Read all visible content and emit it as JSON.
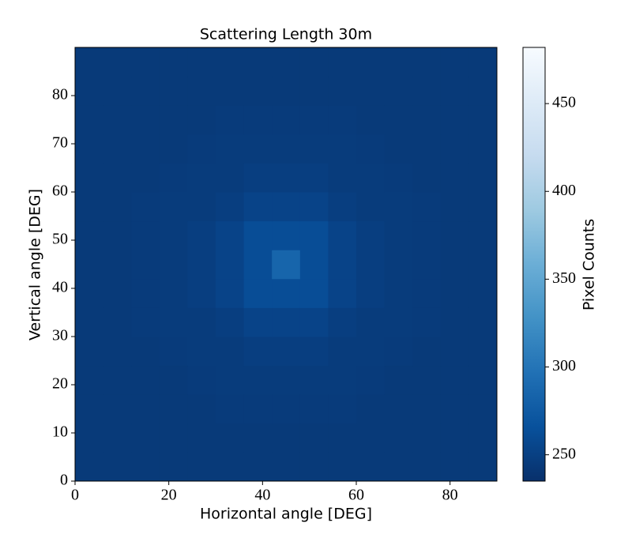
{
  "chart_data": {
    "type": "heatmap",
    "title": "Scattering Length 30m",
    "x_label": "Horizontal angle [DEG]",
    "y_label": "Vertical angle [DEG]",
    "x_bins": [
      0,
      6,
      12,
      18,
      24,
      30,
      36,
      42,
      48,
      54,
      60,
      66,
      72,
      78,
      84,
      90
    ],
    "y_bins": [
      0,
      6,
      12,
      18,
      24,
      30,
      36,
      42,
      48,
      54,
      60,
      66,
      72,
      78,
      84,
      90
    ],
    "z": [
      [
        244,
        244,
        244,
        244,
        244,
        244,
        244,
        244,
        244,
        244,
        244,
        244,
        244,
        244,
        244
      ],
      [
        244,
        244,
        244,
        244,
        244,
        244,
        244,
        244,
        244,
        244,
        244,
        244,
        244,
        244,
        244
      ],
      [
        244,
        244,
        244,
        244,
        244,
        245,
        245,
        245,
        245,
        245,
        244,
        244,
        244,
        244,
        244
      ],
      [
        244,
        244,
        244,
        244,
        245,
        246,
        246,
        246,
        246,
        246,
        245,
        244,
        244,
        244,
        244
      ],
      [
        244,
        244,
        244,
        245,
        246,
        246,
        248,
        248,
        248,
        246,
        246,
        245,
        244,
        244,
        244
      ],
      [
        244,
        244,
        245,
        246,
        246,
        248,
        253,
        253,
        253,
        248,
        246,
        246,
        245,
        244,
        244
      ],
      [
        244,
        244,
        245,
        246,
        248,
        253,
        262,
        262,
        262,
        253,
        248,
        246,
        245,
        244,
        244
      ],
      [
        244,
        244,
        245,
        246,
        248,
        253,
        262,
        285,
        262,
        253,
        248,
        246,
        245,
        244,
        244
      ],
      [
        244,
        244,
        245,
        246,
        248,
        253,
        262,
        262,
        262,
        253,
        248,
        246,
        245,
        244,
        244
      ],
      [
        244,
        244,
        245,
        246,
        246,
        248,
        253,
        253,
        253,
        248,
        246,
        246,
        245,
        244,
        244
      ],
      [
        244,
        244,
        244,
        245,
        246,
        246,
        248,
        248,
        248,
        246,
        246,
        245,
        244,
        244,
        244
      ],
      [
        244,
        244,
        244,
        244,
        245,
        246,
        246,
        246,
        246,
        246,
        245,
        244,
        244,
        244,
        244
      ],
      [
        244,
        244,
        244,
        244,
        244,
        245,
        245,
        245,
        245,
        245,
        244,
        244,
        244,
        244,
        244
      ],
      [
        244,
        244,
        244,
        244,
        244,
        244,
        244,
        244,
        244,
        244,
        244,
        244,
        244,
        244,
        244
      ],
      [
        244,
        244,
        244,
        244,
        244,
        244,
        244,
        244,
        244,
        244,
        244,
        244,
        244,
        244,
        244
      ]
    ],
    "xlim": [
      0,
      90
    ],
    "ylim": [
      0,
      90
    ],
    "xticks": [
      0,
      20,
      40,
      60,
      80
    ],
    "yticks": [
      0,
      10,
      20,
      30,
      40,
      50,
      60,
      70,
      80
    ],
    "colormap": "Blues",
    "colorbar": {
      "label": "Pixel Counts",
      "lim": [
        235,
        482
      ],
      "ticks": [
        250,
        300,
        350,
        400,
        450
      ]
    }
  }
}
